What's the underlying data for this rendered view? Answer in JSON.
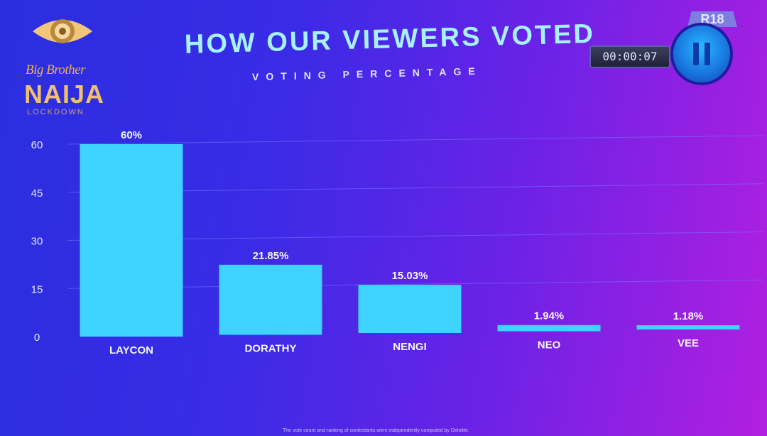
{
  "logo": {
    "line1": "Big Brother",
    "line2": "NAIJA",
    "line3": "LOCKDOWN"
  },
  "header": {
    "title": "HOW OUR VIEWERS VOTED",
    "subtitle": "VOTING PERCENTAGE"
  },
  "player": {
    "rating": "R18",
    "timer": "00:00:07",
    "pause_icon": "pause-icon"
  },
  "footnote": "The vote count and ranking of contestants were independently computed by Deloitte.",
  "colors": {
    "bar": "#3fd3ff",
    "accent": "#a6f3ff",
    "gridline": "#7b78ff"
  },
  "chart_data": {
    "type": "bar",
    "title": "HOW OUR VIEWERS VOTED",
    "subtitle": "VOTING PERCENTAGE",
    "categories": [
      "LAYCON",
      "DORATHY",
      "NENGI",
      "NEO",
      "VEE"
    ],
    "values": [
      60,
      21.85,
      15.03,
      1.94,
      1.18
    ],
    "value_labels": [
      "60%",
      "21.85%",
      "15.03%",
      "1.94%",
      "1.18%"
    ],
    "yticks": [
      0,
      15,
      30,
      45,
      60
    ],
    "ylim": [
      0,
      60
    ],
    "xlabel": "",
    "ylabel": "",
    "grid": true
  }
}
